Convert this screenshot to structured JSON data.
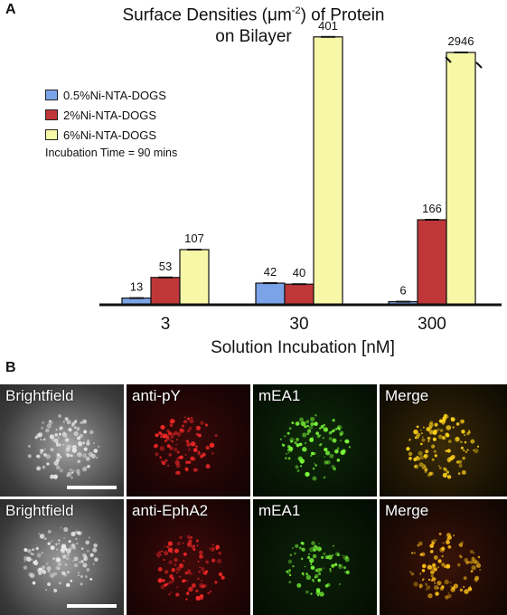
{
  "panel_a_label": "A",
  "panel_b_label": "B",
  "chart_data": {
    "type": "bar",
    "title_line1": "Surface Densities (μm",
    "title_sup": "-2",
    "title_line1_end": ") of Protein",
    "title_line2": "on Bilayer",
    "xlabel": "Solution Incubation [nM]",
    "categories": [
      "3",
      "30",
      "300"
    ],
    "series": [
      {
        "name": "0.5%Ni-NTA-DOGS",
        "color": "#7ba3e8",
        "values": [
          13,
          42,
          6
        ]
      },
      {
        "name": "2%Ni-NTA-DOGS",
        "color": "#c0373a",
        "values": [
          53,
          40,
          166
        ]
      },
      {
        "name": "6%Ni-NTA-DOGS",
        "color": "#f7f7a8",
        "values": [
          107,
          401,
          2946
        ]
      }
    ],
    "value_labels": [
      [
        "13",
        "53",
        "107"
      ],
      [
        "42",
        "40",
        "401"
      ],
      [
        "6",
        "166",
        "2946"
      ]
    ],
    "note": "Incubation Time = 90 mins",
    "legend_position": "top-left"
  },
  "micrographs": {
    "row1": [
      "Brightfield",
      "anti-pY",
      "mEA1",
      "Merge"
    ],
    "row2": [
      "Brightfield",
      "anti-EphA2",
      "mEA1",
      "Merge"
    ]
  }
}
